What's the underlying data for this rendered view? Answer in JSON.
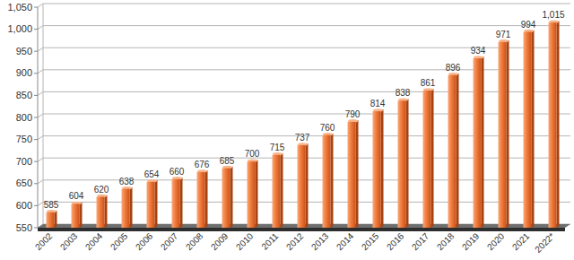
{
  "chart_data": {
    "type": "bar",
    "categories": [
      "2002",
      "2003",
      "2004",
      "2005",
      "2006",
      "2007",
      "2008",
      "2009",
      "2010",
      "2011",
      "2012",
      "2013",
      "2014",
      "2015",
      "2016",
      "2017",
      "2018",
      "2019",
      "2020",
      "2021",
      "2022*"
    ],
    "values": [
      585,
      604,
      620,
      638,
      654,
      660,
      676,
      685,
      700,
      715,
      737,
      760,
      790,
      814,
      838,
      861,
      896,
      934,
      971,
      994,
      1015
    ],
    "value_labels": [
      "585",
      "604",
      "620",
      "638",
      "654",
      "660",
      "676",
      "685",
      "700",
      "715",
      "737",
      "760",
      "790",
      "814",
      "838",
      "861",
      "896",
      "934",
      "971",
      "994",
      "1,015"
    ],
    "color": "#f07a3a",
    "ylim": [
      550,
      1050
    ],
    "yticks": [
      550,
      600,
      650,
      700,
      750,
      800,
      850,
      900,
      950,
      {
        "value": 1000,
        "label": "1,000"
      },
      {
        "value": 1050,
        "label": "1,050"
      }
    ],
    "grid": true,
    "data_labels": true
  }
}
